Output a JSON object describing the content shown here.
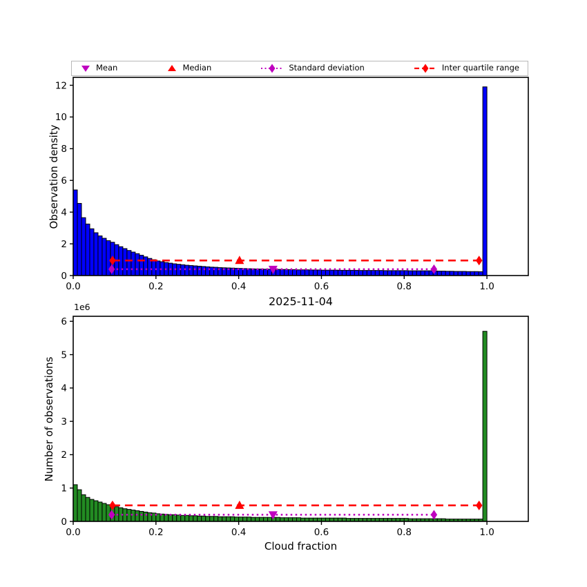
{
  "colors": {
    "background": "#FFFFFF",
    "red": "#FF0000",
    "magenta": "#BF00BF",
    "bar_edge": "#000000",
    "top_bar": "#0000FF",
    "bottom_bar": "#228B22",
    "legend_border": "#B8B8B8"
  },
  "legend": {
    "position": "top",
    "items": [
      {
        "label": "Mean",
        "marker": "triangle-down",
        "color": "#BF00BF",
        "line": "none"
      },
      {
        "label": "Median",
        "marker": "triangle-up",
        "color": "#FF0000",
        "line": "none"
      },
      {
        "label": "Standard deviation",
        "marker": "diamond",
        "color": "#BF00BF",
        "line": "dotted"
      },
      {
        "label": "Inter quartile range",
        "marker": "diamond",
        "color": "#FF0000",
        "line": "dashed"
      }
    ]
  },
  "chart_data": [
    {
      "type": "bar",
      "name": "observation-density-histogram",
      "title": "",
      "xlabel": "",
      "ylabel": "Observation density",
      "bar_color": "#0000FF",
      "grid": false,
      "x_start": 0.0,
      "bin_width": 0.01,
      "xlim": [
        0,
        1.1
      ],
      "ylim": [
        0,
        12.5
      ],
      "xticks": [
        0,
        0.2,
        0.4,
        0.6,
        0.8,
        1.0
      ],
      "xtick_labels": [
        "0.0",
        "0.2",
        "0.4",
        "0.6",
        "0.8",
        "1.0"
      ],
      "yticks": [
        0,
        2,
        4,
        6,
        8,
        10,
        12
      ],
      "ytick_labels": [
        "0",
        "2",
        "4",
        "6",
        "8",
        "10",
        "12"
      ],
      "values": [
        5.4,
        4.55,
        3.65,
        3.25,
        2.95,
        2.7,
        2.5,
        2.35,
        2.2,
        2.1,
        1.95,
        1.82,
        1.7,
        1.58,
        1.48,
        1.38,
        1.28,
        1.18,
        1.08,
        1.0,
        0.92,
        0.87,
        0.82,
        0.78,
        0.74,
        0.71,
        0.68,
        0.65,
        0.63,
        0.61,
        0.59,
        0.57,
        0.55,
        0.53,
        0.52,
        0.5,
        0.49,
        0.48,
        0.47,
        0.46,
        0.45,
        0.44,
        0.43,
        0.42,
        0.41,
        0.41,
        0.4,
        0.4,
        0.39,
        0.39,
        0.38,
        0.38,
        0.37,
        0.37,
        0.36,
        0.36,
        0.36,
        0.35,
        0.35,
        0.35,
        0.34,
        0.34,
        0.34,
        0.34,
        0.33,
        0.33,
        0.33,
        0.33,
        0.33,
        0.32,
        0.32,
        0.32,
        0.32,
        0.32,
        0.32,
        0.31,
        0.31,
        0.31,
        0.31,
        0.31,
        0.31,
        0.3,
        0.3,
        0.3,
        0.3,
        0.3,
        0.3,
        0.29,
        0.28,
        0.28,
        0.27,
        0.27,
        0.26,
        0.26,
        0.26,
        0.25,
        0.25,
        0.25,
        0.24,
        11.9
      ],
      "stats": {
        "mean_x": 0.483,
        "median_x": 0.402,
        "std_x_range": [
          0.093,
          0.872
        ],
        "iqr_x_range": [
          0.095,
          0.981
        ],
        "iqr_line_y": 0.95,
        "std_line_y": 0.4
      }
    },
    {
      "type": "bar",
      "name": "observation-count-histogram",
      "title": "2025-11-04",
      "xlabel": "Cloud fraction",
      "ylabel": "Number of observations",
      "y_offset_label": "1e6",
      "bar_color": "#228B22",
      "grid": false,
      "x_start": 0.0,
      "bin_width": 0.01,
      "xlim": [
        0,
        1.1
      ],
      "ylim": [
        0,
        6.15
      ],
      "xticks": [
        0,
        0.2,
        0.4,
        0.6,
        0.8,
        1.0
      ],
      "xtick_labels": [
        "0.0",
        "0.2",
        "0.4",
        "0.6",
        "0.8",
        "1.0"
      ],
      "yticks": [
        0,
        1,
        2,
        3,
        4,
        5,
        6
      ],
      "ytick_labels": [
        "0",
        "1",
        "2",
        "3",
        "4",
        "5",
        "6"
      ],
      "values_unit": "1e6",
      "values": [
        1.1,
        0.95,
        0.8,
        0.72,
        0.66,
        0.62,
        0.58,
        0.54,
        0.5,
        0.47,
        0.44,
        0.41,
        0.38,
        0.36,
        0.34,
        0.32,
        0.3,
        0.28,
        0.26,
        0.25,
        0.23,
        0.22,
        0.21,
        0.2,
        0.2,
        0.19,
        0.18,
        0.18,
        0.17,
        0.17,
        0.16,
        0.16,
        0.15,
        0.15,
        0.15,
        0.14,
        0.14,
        0.14,
        0.14,
        0.13,
        0.13,
        0.13,
        0.13,
        0.12,
        0.12,
        0.12,
        0.12,
        0.12,
        0.12,
        0.12,
        0.11,
        0.11,
        0.11,
        0.11,
        0.11,
        0.1,
        0.1,
        0.1,
        0.1,
        0.1,
        0.1,
        0.1,
        0.1,
        0.1,
        0.1,
        0.1,
        0.09,
        0.09,
        0.09,
        0.09,
        0.09,
        0.09,
        0.09,
        0.09,
        0.09,
        0.09,
        0.09,
        0.09,
        0.09,
        0.09,
        0.09,
        0.08,
        0.08,
        0.08,
        0.08,
        0.08,
        0.08,
        0.08,
        0.08,
        0.08,
        0.07,
        0.07,
        0.07,
        0.07,
        0.07,
        0.07,
        0.07,
        0.07,
        0.07,
        5.7
      ],
      "stats": {
        "mean_x": 0.483,
        "median_x": 0.402,
        "std_x_range": [
          0.093,
          0.872
        ],
        "iqr_x_range": [
          0.095,
          0.981
        ],
        "iqr_line_y": 0.48,
        "std_line_y": 0.2
      }
    }
  ]
}
